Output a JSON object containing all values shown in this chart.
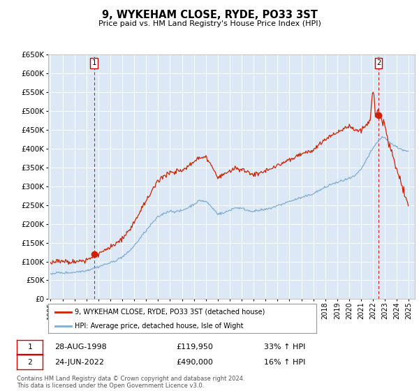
{
  "title": "9, WYKEHAM CLOSE, RYDE, PO33 3ST",
  "subtitle": "Price paid vs. HM Land Registry's House Price Index (HPI)",
  "legend_line1": "9, WYKEHAM CLOSE, RYDE, PO33 3ST (detached house)",
  "legend_line2": "HPI: Average price, detached house, Isle of Wight",
  "annotation1_date": "28-AUG-1998",
  "annotation1_price": "£119,950",
  "annotation1_hpi": "33% ↑ HPI",
  "annotation2_date": "24-JUN-2022",
  "annotation2_price": "£490,000",
  "annotation2_hpi": "16% ↑ HPI",
  "footer1": "Contains HM Land Registry data © Crown copyright and database right 2024.",
  "footer2": "This data is licensed under the Open Government Licence v3.0.",
  "hpi_color": "#7eadd4",
  "price_color": "#cc2200",
  "marker_color": "#cc2200",
  "vline_color": "#cc0000",
  "bg_color": "#dce8f5",
  "grid_color": "#ffffff",
  "ylim_min": 0,
  "ylim_max": 650000,
  "xlim_min": 1994.8,
  "xlim_max": 2025.5,
  "sale1_date": 1998.646,
  "sale1_price": 119950,
  "sale2_date": 2022.458,
  "sale2_price": 490000,
  "hpi_anchors_t": [
    1995.0,
    1995.5,
    1996.0,
    1996.5,
    1997.0,
    1997.5,
    1998.0,
    1998.5,
    1999.0,
    1999.5,
    2000.0,
    2000.5,
    2001.0,
    2001.5,
    2002.0,
    2002.5,
    2003.0,
    2003.5,
    2004.0,
    2004.5,
    2005.0,
    2005.5,
    2006.0,
    2006.5,
    2007.0,
    2007.5,
    2008.0,
    2008.5,
    2009.0,
    2009.5,
    2010.0,
    2010.5,
    2011.0,
    2011.5,
    2012.0,
    2012.5,
    2013.0,
    2013.5,
    2014.0,
    2014.5,
    2015.0,
    2015.5,
    2016.0,
    2016.5,
    2017.0,
    2017.5,
    2018.0,
    2018.5,
    2019.0,
    2019.5,
    2020.0,
    2020.5,
    2021.0,
    2021.5,
    2022.0,
    2022.5,
    2022.8,
    2023.0,
    2023.5,
    2024.0,
    2024.5,
    2024.9
  ],
  "hpi_anchors_v": [
    68000,
    69000,
    70000,
    71500,
    73000,
    76000,
    79000,
    84000,
    89000,
    94000,
    99000,
    106000,
    115000,
    128000,
    145000,
    165000,
    185000,
    205000,
    222000,
    232000,
    238000,
    235000,
    238000,
    245000,
    255000,
    265000,
    262000,
    245000,
    228000,
    230000,
    238000,
    245000,
    242000,
    238000,
    236000,
    238000,
    240000,
    245000,
    250000,
    255000,
    260000,
    265000,
    270000,
    275000,
    282000,
    290000,
    298000,
    305000,
    310000,
    316000,
    320000,
    328000,
    345000,
    372000,
    400000,
    422000,
    432000,
    428000,
    415000,
    405000,
    398000,
    393000
  ]
}
